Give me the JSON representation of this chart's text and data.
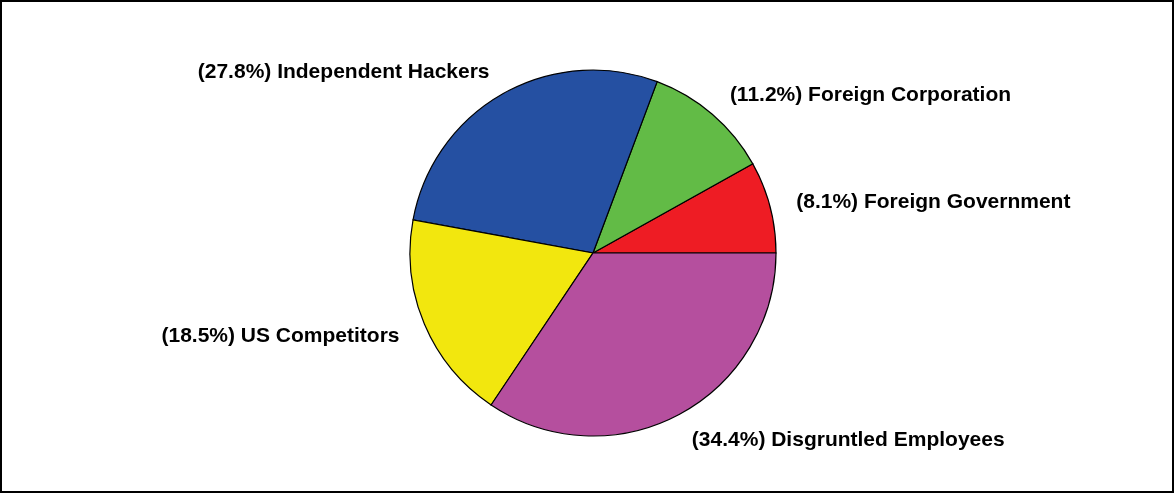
{
  "chart_data": {
    "type": "pie",
    "categories": [
      "(8.1%) Foreign Government",
      "(11.2%) Foreign Corporation",
      "(27.8%) Independent Hackers",
      "(18.5%) US Competitors",
      "(34.4%) Disgruntled Employees"
    ],
    "values": [
      8.1,
      11.2,
      27.8,
      18.5,
      34.4
    ],
    "colors": [
      "#ee1c24",
      "#62bb46",
      "#2550a2",
      "#f2e70e",
      "#b54f9e"
    ]
  }
}
